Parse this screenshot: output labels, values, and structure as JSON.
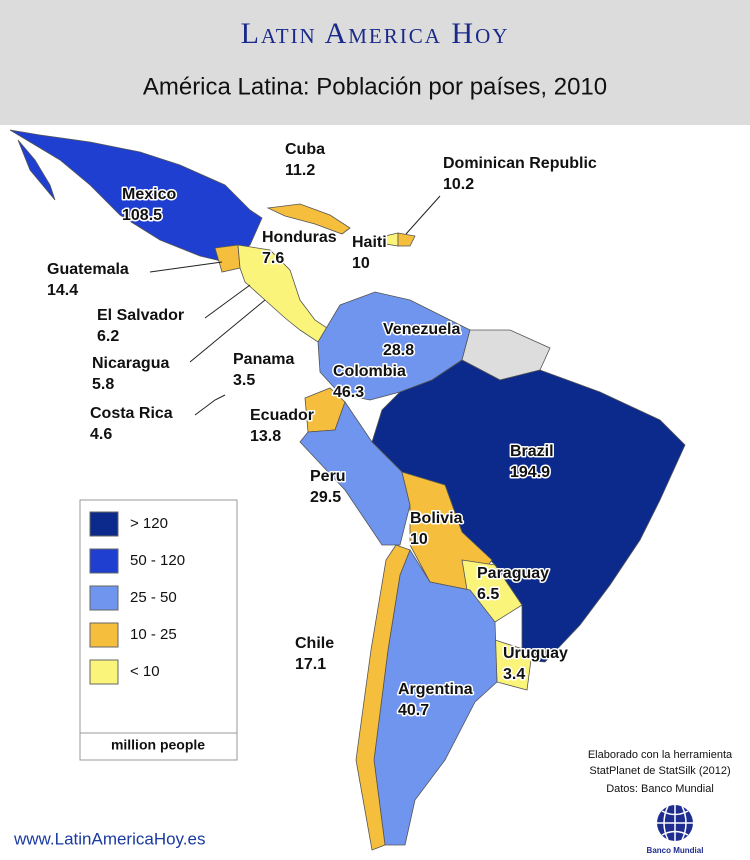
{
  "header": {
    "title": "Latin America Hoy",
    "subtitle": "América Latina: Población por países, 2010"
  },
  "countries": [
    {
      "name": "Cuba",
      "population": 11.2
    },
    {
      "name": "Dominican Republic",
      "population": 10.2
    },
    {
      "name": "Mexico",
      "population": 108.5
    },
    {
      "name": "Honduras",
      "population": 7.6
    },
    {
      "name": "Haiti",
      "population": 10
    },
    {
      "name": "Guatemala",
      "population": 14.4
    },
    {
      "name": "El Salvador",
      "population": 6.2
    },
    {
      "name": "Venezuela",
      "population": 28.8
    },
    {
      "name": "Nicaragua",
      "population": 5.8
    },
    {
      "name": "Panama",
      "population": 3.5
    },
    {
      "name": "Colombia",
      "population": 46.3
    },
    {
      "name": "Costa Rica",
      "population": 4.6
    },
    {
      "name": "Ecuador",
      "population": 13.8
    },
    {
      "name": "Brazil",
      "population": 194.9
    },
    {
      "name": "Peru",
      "population": 29.5
    },
    {
      "name": "Bolivia",
      "population": 10
    },
    {
      "name": "Paraguay",
      "population": 6.5
    },
    {
      "name": "Chile",
      "population": 17.1
    },
    {
      "name": "Uruguay",
      "population": 3.4
    },
    {
      "name": "Argentina",
      "population": 40.7
    }
  ],
  "legend": {
    "items": [
      {
        "label": "> 120",
        "color": "#0b2a8c"
      },
      {
        "label": "50 - 120",
        "color": "#1f3fd0"
      },
      {
        "label": "25 - 50",
        "color": "#6f95ef"
      },
      {
        "label": "10 - 25",
        "color": "#f5be3c"
      },
      {
        "label": "< 10",
        "color": "#fbf47a"
      }
    ],
    "unit": "million people"
  },
  "credits": [
    "Elaborado con la herramienta",
    "StatPlanet de StatSilk (2012)",
    "Datos: Banco Mundial"
  ],
  "website": "www.LatinAmericaHoy.es",
  "logo": "Banco Mundial"
}
